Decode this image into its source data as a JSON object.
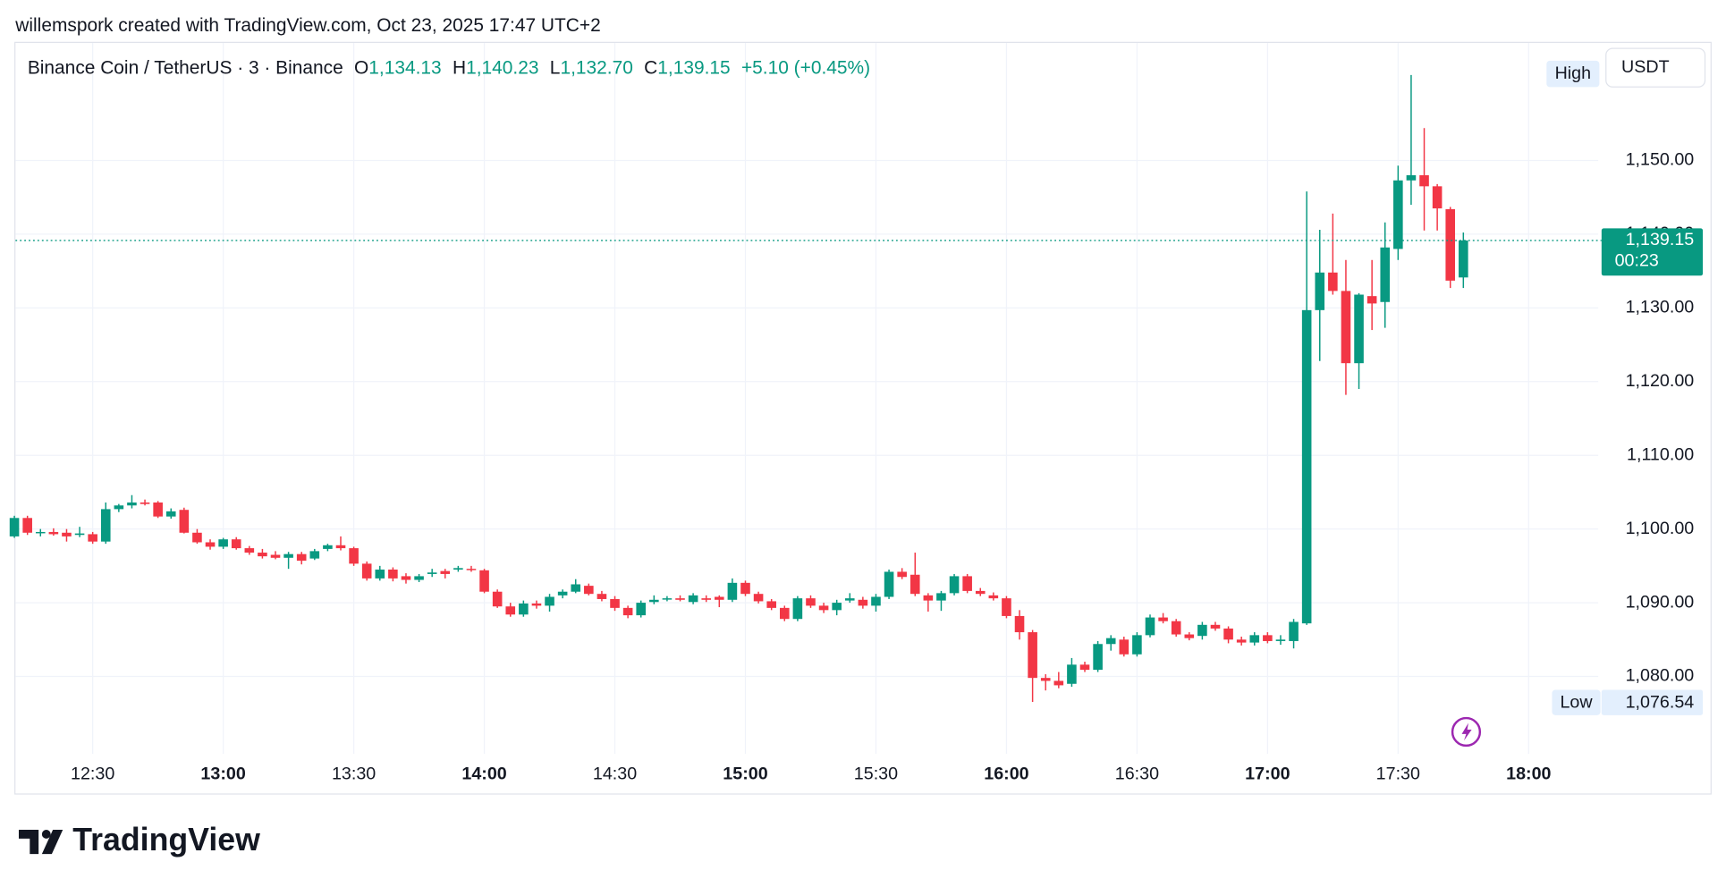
{
  "chart_data": {
    "type": "candlestick",
    "attribution": "willemspork created with TradingView.com, Oct 23, 2025 17:47 UTC+2",
    "symbol": "Binance Coin / TetherUS · 3 · Binance",
    "legend": [
      {
        "label": "O",
        "value": "1,134.13"
      },
      {
        "label": "H",
        "value": "1,140.23"
      },
      {
        "label": "L",
        "value": "1,132.70"
      },
      {
        "label": "C",
        "value": "1,139.15"
      }
    ],
    "change": "+5.10 (+0.45%)",
    "currency": "USDT",
    "high_label": "High",
    "low_label": "Low",
    "low_price": {
      "value": 1076.54,
      "label": "1,076.54"
    },
    "last_price_label": "1,139.15",
    "countdown": "00:23",
    "footer_logo": "TradingView",
    "up_color": "#089981",
    "down_color": "#f23645",
    "grid": true,
    "xlim": [
      "12:12",
      "18:16"
    ],
    "xticks": [
      "12:30",
      "13:00",
      "13:30",
      "14:00",
      "14:30",
      "15:00",
      "15:30",
      "16:00",
      "16:30",
      "17:00",
      "17:30",
      "18:00"
    ],
    "ylim": [
      1069.5,
      1166.1
    ],
    "yticks": [
      {
        "value": 1080,
        "label": "1,080.00"
      },
      {
        "value": 1090,
        "label": "1,090.00"
      },
      {
        "value": 1100,
        "label": "1,100.00"
      },
      {
        "value": 1110,
        "label": "1,110.00"
      },
      {
        "value": 1120,
        "label": "1,120.00"
      },
      {
        "value": 1130,
        "label": "1,130.00"
      },
      {
        "value": 1140,
        "label": "1,140.00"
      },
      {
        "value": 1150,
        "label": "1,150.00"
      }
    ],
    "x": [
      "12:12",
      "12:15",
      "12:18",
      "12:21",
      "12:24",
      "12:27",
      "12:30",
      "12:33",
      "12:36",
      "12:39",
      "12:42",
      "12:45",
      "12:48",
      "12:51",
      "12:54",
      "12:57",
      "13:00",
      "13:03",
      "13:06",
      "13:09",
      "13:12",
      "13:15",
      "13:18",
      "13:21",
      "13:24",
      "13:27",
      "13:30",
      "13:33",
      "13:36",
      "13:39",
      "13:42",
      "13:45",
      "13:48",
      "13:51",
      "13:54",
      "13:57",
      "14:00",
      "14:03",
      "14:06",
      "14:09",
      "14:12",
      "14:15",
      "14:18",
      "14:21",
      "14:24",
      "14:27",
      "14:30",
      "14:33",
      "14:36",
      "14:39",
      "14:42",
      "14:45",
      "14:48",
      "14:51",
      "14:54",
      "14:57",
      "15:00",
      "15:03",
      "15:06",
      "15:09",
      "15:12",
      "15:15",
      "15:18",
      "15:21",
      "15:24",
      "15:27",
      "15:30",
      "15:33",
      "15:36",
      "15:39",
      "15:42",
      "15:45",
      "15:48",
      "15:51",
      "15:54",
      "15:57",
      "16:00",
      "16:03",
      "16:06",
      "16:09",
      "16:12",
      "16:15",
      "16:18",
      "16:21",
      "16:24",
      "16:27",
      "16:30",
      "16:33",
      "16:36",
      "16:39",
      "16:42",
      "16:45",
      "16:48",
      "16:51",
      "16:54",
      "16:57",
      "17:00",
      "17:03",
      "17:06",
      "17:09",
      "17:12",
      "17:15",
      "17:18",
      "17:21",
      "17:24",
      "17:27",
      "17:30",
      "17:33",
      "17:36",
      "17:39",
      "17:42",
      "17:45"
    ],
    "ohlc": [
      [
        1099,
        1101.8,
        1098.8,
        1101.5
      ],
      [
        1101.5,
        1101.8,
        1099.2,
        1099.5
      ],
      [
        1099.5,
        1100,
        1099,
        1099.6
      ],
      [
        1099.6,
        1100.1,
        1099.1,
        1099.3
      ],
      [
        1099.5,
        1100,
        1098.3,
        1099
      ],
      [
        1099.2,
        1100.3,
        1098.9,
        1099.4
      ],
      [
        1099.3,
        1099.6,
        1098,
        1098.3
      ],
      [
        1098.3,
        1103.6,
        1098,
        1102.7
      ],
      [
        1102.7,
        1103.4,
        1102.3,
        1103.2
      ],
      [
        1103.2,
        1104.6,
        1102.8,
        1103.6
      ],
      [
        1103.6,
        1104,
        1103.2,
        1103.4
      ],
      [
        1103.6,
        1103.8,
        1101.5,
        1101.7
      ],
      [
        1101.7,
        1102.8,
        1101.4,
        1102.4
      ],
      [
        1102.6,
        1102.9,
        1099.4,
        1099.5
      ],
      [
        1099.5,
        1100,
        1098,
        1098.2
      ],
      [
        1098.2,
        1098.6,
        1097.2,
        1097.6
      ],
      [
        1097.6,
        1098.8,
        1097.3,
        1098.6
      ],
      [
        1098.6,
        1098.9,
        1097.2,
        1097.4
      ],
      [
        1097.4,
        1097.7,
        1096.5,
        1096.8
      ],
      [
        1096.8,
        1097.3,
        1096,
        1096.3
      ],
      [
        1096.5,
        1097,
        1095.9,
        1096.1
      ],
      [
        1096.1,
        1096.9,
        1094.6,
        1096.6
      ],
      [
        1096.6,
        1096.9,
        1095.2,
        1095.7
      ],
      [
        1096,
        1097.3,
        1095.8,
        1097
      ],
      [
        1097.3,
        1098,
        1097,
        1097.8
      ],
      [
        1097.8,
        1099,
        1097.1,
        1097.4
      ],
      [
        1097.4,
        1097.6,
        1095,
        1095.3
      ],
      [
        1095.3,
        1095.6,
        1093,
        1093.3
      ],
      [
        1093.3,
        1095,
        1093,
        1094.5
      ],
      [
        1094.5,
        1094.8,
        1092.9,
        1093.3
      ],
      [
        1093.6,
        1094,
        1092.6,
        1093.1
      ],
      [
        1093.1,
        1093.9,
        1092.8,
        1093.6
      ],
      [
        1093.9,
        1094.6,
        1093.5,
        1094.1
      ],
      [
        1094.3,
        1094.6,
        1093.3,
        1093.9
      ],
      [
        1094.5,
        1095,
        1094.2,
        1094.7
      ],
      [
        1094.6,
        1095,
        1094.2,
        1094.5
      ],
      [
        1094.4,
        1094.6,
        1091.3,
        1091.5
      ],
      [
        1091.5,
        1091.8,
        1089.3,
        1089.5
      ],
      [
        1089.5,
        1090,
        1088.1,
        1088.4
      ],
      [
        1088.4,
        1090.3,
        1088.1,
        1089.9
      ],
      [
        1089.9,
        1090.3,
        1089.2,
        1089.6
      ],
      [
        1089.6,
        1091.2,
        1088.8,
        1090.8
      ],
      [
        1091,
        1091.8,
        1090.6,
        1091.5
      ],
      [
        1091.5,
        1093.2,
        1091.3,
        1092.5
      ],
      [
        1092.3,
        1092.6,
        1091,
        1091.2
      ],
      [
        1091.2,
        1091.6,
        1090.2,
        1090.5
      ],
      [
        1090.5,
        1090.9,
        1088.9,
        1089.3
      ],
      [
        1089.3,
        1089.6,
        1087.9,
        1088.3
      ],
      [
        1088.3,
        1090.3,
        1088,
        1090
      ],
      [
        1090.1,
        1091,
        1089.8,
        1090.4
      ],
      [
        1090.5,
        1090.9,
        1090.2,
        1090.6
      ],
      [
        1090.6,
        1091,
        1090.2,
        1090.4
      ],
      [
        1090.1,
        1091.3,
        1089.8,
        1091
      ],
      [
        1090.6,
        1091,
        1090.1,
        1090.4
      ],
      [
        1090.8,
        1091,
        1089.4,
        1090.4
      ],
      [
        1090.4,
        1093.3,
        1090.1,
        1092.7
      ],
      [
        1092.7,
        1093,
        1090.9,
        1091.2
      ],
      [
        1091.2,
        1091.5,
        1089.9,
        1090.2
      ],
      [
        1090.2,
        1090.5,
        1089,
        1089.3
      ],
      [
        1089.3,
        1089.6,
        1087.5,
        1087.8
      ],
      [
        1087.8,
        1090.9,
        1087.5,
        1090.6
      ],
      [
        1090.6,
        1091,
        1089.3,
        1089.6
      ],
      [
        1089.6,
        1090,
        1088.6,
        1089
      ],
      [
        1089,
        1090.4,
        1088.3,
        1090
      ],
      [
        1090.3,
        1091.3,
        1090,
        1090.6
      ],
      [
        1090.4,
        1090.8,
        1089.2,
        1089.6
      ],
      [
        1089.6,
        1091.2,
        1088.8,
        1090.8
      ],
      [
        1090.8,
        1094.5,
        1090.5,
        1094.2
      ],
      [
        1094.2,
        1094.7,
        1093.2,
        1093.5
      ],
      [
        1093.8,
        1096.8,
        1090.9,
        1091.2
      ],
      [
        1091,
        1091.3,
        1088.8,
        1090.3
      ],
      [
        1090.3,
        1091.6,
        1088.9,
        1091.3
      ],
      [
        1091.3,
        1093.9,
        1091,
        1093.6
      ],
      [
        1093.6,
        1093.9,
        1091.3,
        1091.6
      ],
      [
        1091.6,
        1092,
        1090.9,
        1091.2
      ],
      [
        1091,
        1091.4,
        1090.3,
        1090.6
      ],
      [
        1090.6,
        1090.9,
        1087.9,
        1088.2
      ],
      [
        1088.2,
        1089,
        1085,
        1086
      ],
      [
        1086,
        1086.3,
        1076.54,
        1079.8
      ],
      [
        1079.8,
        1080.3,
        1078.1,
        1079.4
      ],
      [
        1079.4,
        1080.6,
        1078.4,
        1078.8
      ],
      [
        1079,
        1082.5,
        1078.6,
        1081.6
      ],
      [
        1081.6,
        1082,
        1080.6,
        1080.9
      ],
      [
        1080.9,
        1084.8,
        1080.6,
        1084.4
      ],
      [
        1084.4,
        1085.6,
        1083.5,
        1085.2
      ],
      [
        1085,
        1085.4,
        1082.7,
        1083
      ],
      [
        1083,
        1086,
        1082.7,
        1085.6
      ],
      [
        1085.6,
        1088.4,
        1085.3,
        1088
      ],
      [
        1088,
        1088.6,
        1087.2,
        1087.5
      ],
      [
        1087.5,
        1087.8,
        1085.4,
        1085.7
      ],
      [
        1085.7,
        1086,
        1084.9,
        1085.2
      ],
      [
        1085.5,
        1087.4,
        1085,
        1087
      ],
      [
        1087,
        1087.4,
        1086.2,
        1086.5
      ],
      [
        1086.5,
        1086.8,
        1084.5,
        1085
      ],
      [
        1085,
        1085.4,
        1084.2,
        1084.6
      ],
      [
        1084.6,
        1086,
        1084.2,
        1085.6
      ],
      [
        1085.6,
        1086,
        1084.5,
        1084.8
      ],
      [
        1084.8,
        1085.6,
        1084.3,
        1085
      ],
      [
        1084.8,
        1087.8,
        1083.8,
        1087.4
      ],
      [
        1087.2,
        1145.8,
        1087,
        1129.7
      ],
      [
        1129.7,
        1140.6,
        1122.8,
        1134.8
      ],
      [
        1134.8,
        1142.8,
        1131.8,
        1132.3
      ],
      [
        1132.3,
        1136.5,
        1118.2,
        1122.5
      ],
      [
        1122.5,
        1132,
        1119,
        1131.8
      ],
      [
        1131.6,
        1136.5,
        1127,
        1130.6
      ],
      [
        1130.8,
        1141.6,
        1127.3,
        1138.2
      ],
      [
        1138,
        1149.3,
        1136.5,
        1147.3
      ],
      [
        1147.3,
        1161.6,
        1144,
        1148
      ],
      [
        1148,
        1154.4,
        1140.5,
        1146.5
      ],
      [
        1146.5,
        1146.8,
        1140.5,
        1143.5
      ],
      [
        1143.4,
        1143.7,
        1132.7,
        1133.7
      ],
      [
        1134.13,
        1140.23,
        1132.7,
        1139.15
      ]
    ]
  }
}
